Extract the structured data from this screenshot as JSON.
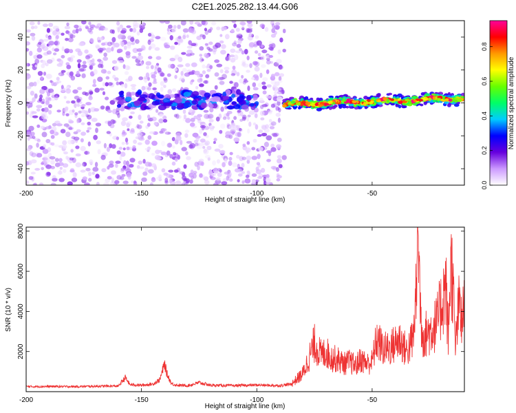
{
  "figure_title": "C2E1.2025.282.13.44.G06",
  "chart_data": [
    {
      "type": "heatmap",
      "title": "C2E1.2025.282.13.44.G06",
      "xlabel": "Height of straight line (km)",
      "ylabel": "Frequency (Hz)",
      "xlim": [
        -200,
        -10
      ],
      "ylim": [
        -50,
        50
      ],
      "x_ticks": [
        -200,
        -150,
        -100,
        -50
      ],
      "y_ticks": [
        -40,
        -20,
        0,
        20,
        40
      ],
      "x_tick_labels": [
        "-200",
        "-150",
        "-100",
        "-50"
      ],
      "y_tick_labels": [
        "-40",
        "-20",
        "0",
        "20",
        "40"
      ],
      "colorbar": {
        "label": "Normalized spectral amplitude",
        "range": [
          0,
          0.95
        ],
        "ticks": [
          0.0,
          0.2,
          0.4,
          0.6,
          0.8
        ],
        "tick_labels": [
          "0.0",
          "0.2",
          "0.4",
          "0.6",
          "0.8"
        ],
        "colors": [
          "#ffffff",
          "#cc99ff",
          "#6600dd",
          "#0000ff",
          "#00ccff",
          "#00ff66",
          "#66ff00",
          "#ffff00",
          "#ff9900",
          "#ff0000",
          "#ff0099"
        ]
      },
      "features": [
        {
          "name": "noise scatter",
          "x_range": [
            -200,
            -88
          ],
          "frequency_range": [
            -50,
            50
          ],
          "amplitude": 0.1
        },
        {
          "name": "faint signal band",
          "x_range": [
            -160,
            -100
          ],
          "frequency_center": 2,
          "amplitude": 0.3
        },
        {
          "name": "strong signal trace",
          "x_range": [
            -88,
            -10
          ],
          "frequency_start": -1,
          "frequency_end": 3,
          "amplitude": 0.7
        }
      ]
    },
    {
      "type": "line",
      "xlabel": "Height of straight line (km)",
      "ylabel": "SNR (10 * v/v)",
      "xlim": [
        -200,
        -10
      ],
      "ylim": [
        0,
        8200
      ],
      "x_ticks": [
        -200,
        -150,
        -100,
        -50
      ],
      "y_ticks": [
        2000,
        4000,
        6000,
        8000
      ],
      "x_tick_labels": [
        "-200",
        "-150",
        "-100",
        "-50"
      ],
      "y_tick_labels": [
        "2000",
        "4000",
        "6000",
        "8000"
      ],
      "series": [
        {
          "name": "SNR",
          "color": "#ee3333",
          "x": [
            -200,
            -190,
            -180,
            -170,
            -160,
            -157,
            -155,
            -150,
            -145,
            -142,
            -140,
            -139,
            -137,
            -135,
            -130,
            -125,
            -120,
            -110,
            -100,
            -90,
            -85,
            -80,
            -78,
            -75,
            -72,
            -70,
            -68,
            -65,
            -62,
            -60,
            -57,
            -55,
            -52,
            -50,
            -48,
            -45,
            -42,
            -40,
            -38,
            -35,
            -32,
            -31,
            -30,
            -29,
            -28,
            -25,
            -22,
            -20,
            -18,
            -17,
            -16,
            -15,
            -14,
            -12,
            -11,
            -10
          ],
          "y": [
            250,
            260,
            250,
            270,
            280,
            700,
            350,
            320,
            380,
            600,
            1400,
            900,
            400,
            330,
            300,
            450,
            320,
            300,
            330,
            300,
            380,
            900,
            1500,
            2400,
            1800,
            2000,
            1700,
            1600,
            1400,
            1500,
            1300,
            1600,
            1400,
            1500,
            2600,
            2100,
            2200,
            2400,
            2600,
            2000,
            2700,
            5000,
            8200,
            4000,
            2800,
            3000,
            3400,
            4300,
            5400,
            2500,
            6400,
            5500,
            2200,
            4600,
            3000,
            4900
          ]
        }
      ]
    }
  ]
}
